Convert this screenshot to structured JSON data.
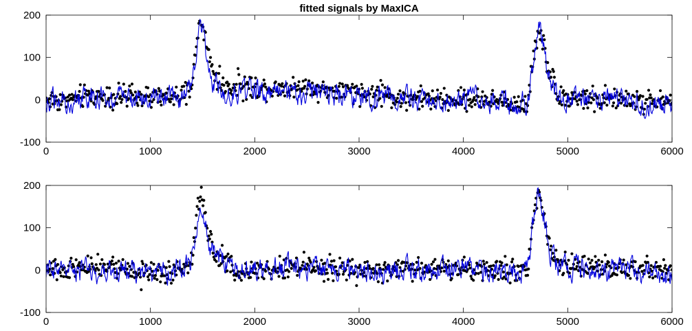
{
  "figure": {
    "title": "fitted signals by MaxICA"
  },
  "colors": {
    "observed": "#000000",
    "fitted": "#0000dd",
    "axes": "#000000",
    "background": "#ffffff"
  },
  "chart_data": [
    {
      "type": "line",
      "title": "fitted signals by MaxICA",
      "xlabel": "",
      "ylabel": "",
      "xlim": [
        0,
        6000
      ],
      "ylim": [
        -100,
        200
      ],
      "xticks": [
        0,
        1000,
        2000,
        3000,
        4000,
        5000,
        6000
      ],
      "yticks": [
        -100,
        0,
        100,
        200
      ],
      "grid": false,
      "series": [
        {
          "style": "dotted-markers",
          "x": [
            0,
            200,
            400,
            600,
            800,
            1000,
            1200,
            1350,
            1400,
            1450,
            1480,
            1500,
            1550,
            1600,
            1700,
            1800,
            2000,
            2500,
            3000,
            3400,
            3800,
            4200,
            4500,
            4620,
            4660,
            4700,
            4730,
            4760,
            4800,
            4850,
            4900,
            5000,
            5500,
            6000
          ],
          "y": [
            0,
            0,
            10,
            10,
            5,
            5,
            5,
            10,
            40,
            150,
            190,
            185,
            110,
            70,
            30,
            30,
            30,
            30,
            15,
            5,
            0,
            0,
            -10,
            -5,
            80,
            140,
            160,
            150,
            90,
            50,
            15,
            5,
            0,
            -5
          ]
        },
        {
          "style": "line",
          "x": [
            0,
            200,
            400,
            600,
            800,
            1000,
            1200,
            1350,
            1400,
            1450,
            1480,
            1500,
            1550,
            1600,
            1700,
            1800,
            2000,
            2500,
            3000,
            3400,
            3800,
            4200,
            4500,
            4620,
            4660,
            4700,
            4730,
            4760,
            4800,
            4850,
            4900,
            5000,
            5500,
            6000
          ],
          "y": [
            0,
            0,
            5,
            5,
            0,
            0,
            0,
            5,
            30,
            140,
            170,
            160,
            80,
            40,
            20,
            15,
            20,
            15,
            10,
            5,
            0,
            0,
            -10,
            -5,
            70,
            140,
            170,
            145,
            80,
            30,
            0,
            0,
            0,
            -15
          ]
        }
      ]
    },
    {
      "type": "line",
      "title": "",
      "xlabel": "",
      "ylabel": "",
      "xlim": [
        0,
        6000
      ],
      "ylim": [
        -100,
        200
      ],
      "xticks": [
        0,
        1000,
        2000,
        3000,
        4000,
        5000,
        6000
      ],
      "yticks": [
        -100,
        0,
        100,
        200
      ],
      "grid": false,
      "series": [
        {
          "style": "dotted-markers",
          "x": [
            0,
            200,
            400,
            600,
            800,
            1000,
            1200,
            1350,
            1400,
            1450,
            1480,
            1500,
            1550,
            1600,
            1700,
            1800,
            2000,
            2500,
            3000,
            3400,
            3800,
            4200,
            4500,
            4620,
            4660,
            4700,
            4730,
            4760,
            4800,
            4850,
            4900,
            5000,
            5500,
            6000
          ],
          "y": [
            0,
            5,
            10,
            5,
            0,
            -5,
            0,
            5,
            30,
            140,
            180,
            165,
            90,
            55,
            20,
            0,
            0,
            10,
            0,
            0,
            10,
            0,
            -5,
            0,
            100,
            160,
            165,
            150,
            90,
            40,
            20,
            10,
            5,
            0
          ]
        },
        {
          "style": "line",
          "x": [
            0,
            200,
            400,
            600,
            800,
            1000,
            1200,
            1350,
            1400,
            1450,
            1480,
            1500,
            1550,
            1600,
            1700,
            1800,
            2000,
            2500,
            3000,
            3400,
            3800,
            4200,
            4500,
            4620,
            4660,
            4700,
            4730,
            4760,
            4800,
            4850,
            4900,
            5000,
            5500,
            6000
          ],
          "y": [
            0,
            0,
            0,
            0,
            -5,
            0,
            0,
            5,
            25,
            120,
            150,
            140,
            70,
            40,
            25,
            15,
            0,
            5,
            0,
            0,
            5,
            0,
            -10,
            0,
            90,
            165,
            190,
            160,
            80,
            30,
            10,
            5,
            0,
            -20
          ]
        }
      ]
    }
  ]
}
